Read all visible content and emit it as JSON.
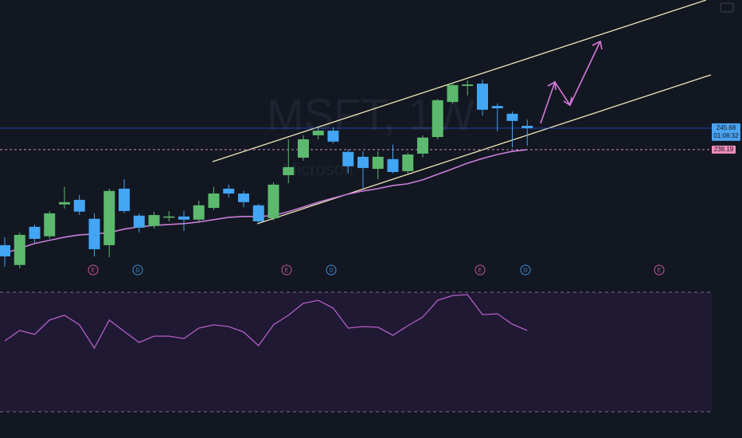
{
  "chart_data": [
    {
      "type": "candlestick",
      "watermark": "MSFT, 1W",
      "watermark_subtitle": "Microsoft",
      "open": [
        204.9,
        198.0,
        211.3,
        208.0,
        219.1,
        220.7,
        214.1,
        204.9,
        224.6,
        215.2,
        211.6,
        214.6,
        214.9,
        213.8,
        217.9,
        224.6,
        222.9,
        218.8,
        214.3,
        229.3,
        235.4,
        243.2,
        244.8,
        237.4,
        235.7,
        231.5,
        234.9,
        230.7,
        236.8,
        242.6,
        254.8,
        260.4,
        261.2,
        253.4,
        250.7,
        246.5
      ],
      "high": [
        207.7,
        209.3,
        212.1,
        216.8,
        225.2,
        222.4,
        216.0,
        224.6,
        227.9,
        216.0,
        216.6,
        216.8,
        216.8,
        220.4,
        225.2,
        226.0,
        223.8,
        219.3,
        226.8,
        241.8,
        243.2,
        246.0,
        246.0,
        238.2,
        237.6,
        237.6,
        239.9,
        237.1,
        243.2,
        255.9,
        261.5,
        262.3,
        262.6,
        254.3,
        251.5,
        248.7
      ],
      "low": [
        197.4,
        196.9,
        205.7,
        207.1,
        217.7,
        215.4,
        201.0,
        200.7,
        216.0,
        209.3,
        210.7,
        213.2,
        209.9,
        212.7,
        217.1,
        221.5,
        218.2,
        212.4,
        213.5,
        226.5,
        234.3,
        241.8,
        240.4,
        229.9,
        224.9,
        227.9,
        229.9,
        229.9,
        235.4,
        241.8,
        254.3,
        257.1,
        250.1,
        244.6,
        239.0,
        239.6
      ],
      "close": [
        201.0,
        208.5,
        207.1,
        216.0,
        219.9,
        216.6,
        203.5,
        223.8,
        216.8,
        211.0,
        215.4,
        214.9,
        213.8,
        218.8,
        222.9,
        222.9,
        219.9,
        213.2,
        226.0,
        232.1,
        241.8,
        244.8,
        241.0,
        232.4,
        231.8,
        235.7,
        230.4,
        236.5,
        242.4,
        255.4,
        260.7,
        260.9,
        252.1,
        252.6,
        248.2,
        245.68
      ],
      "up_color": "#5cb96e",
      "down_color": "#42a5f5",
      "ma": {
        "color": "#c77dd6",
        "values": [
          202.1,
          203.8,
          205.5,
          206.6,
          207.7,
          208.5,
          208.8,
          209.3,
          210.5,
          211.3,
          211.8,
          212.1,
          212.4,
          213.0,
          213.8,
          214.6,
          214.9,
          214.9,
          215.2,
          216.6,
          218.2,
          219.9,
          221.3,
          222.7,
          223.8,
          224.6,
          225.7,
          226.3,
          227.7,
          229.6,
          231.5,
          233.5,
          235.1,
          236.5,
          237.6,
          238.19
        ]
      },
      "last_price": 245.68,
      "countdown": "01:06:32",
      "ma_last": 238.19,
      "events": [
        "E",
        "D",
        "E",
        "D",
        "E",
        "D",
        "E"
      ],
      "ylim": [
        194.6,
        290.34
      ]
    },
    {
      "type": "line",
      "color": "#b45fc7",
      "values": [
        53.7,
        57.2,
        55.9,
        60.7,
        62.3,
        59.1,
        51.3,
        60.7,
        56.9,
        53.2,
        55.3,
        55.3,
        54.5,
        58.0,
        59.1,
        58.5,
        56.7,
        52.1,
        59.1,
        62.3,
        66.3,
        67.3,
        64.7,
        58.0,
        58.5,
        58.3,
        55.6,
        58.8,
        61.7,
        67.3,
        68.9,
        69.2,
        62.5,
        62.8,
        59.3,
        57.2
      ],
      "ylim": [
        30,
        70
      ]
    }
  ]
}
